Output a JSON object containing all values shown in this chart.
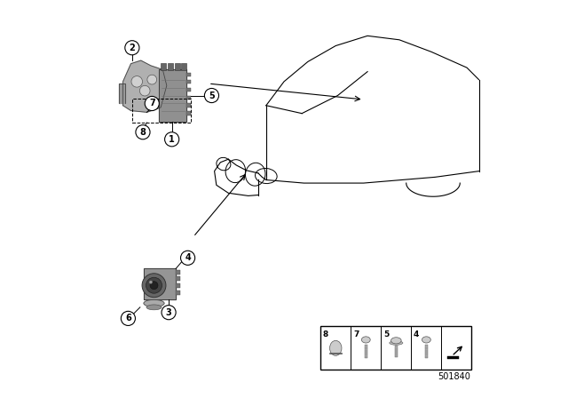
{
  "bg_color": "#ffffff",
  "part_number": "501840",
  "car_color": "#000000",
  "part_color_dark": "#555555",
  "part_color_mid": "#888888",
  "part_color_light": "#bbbbbb"
}
